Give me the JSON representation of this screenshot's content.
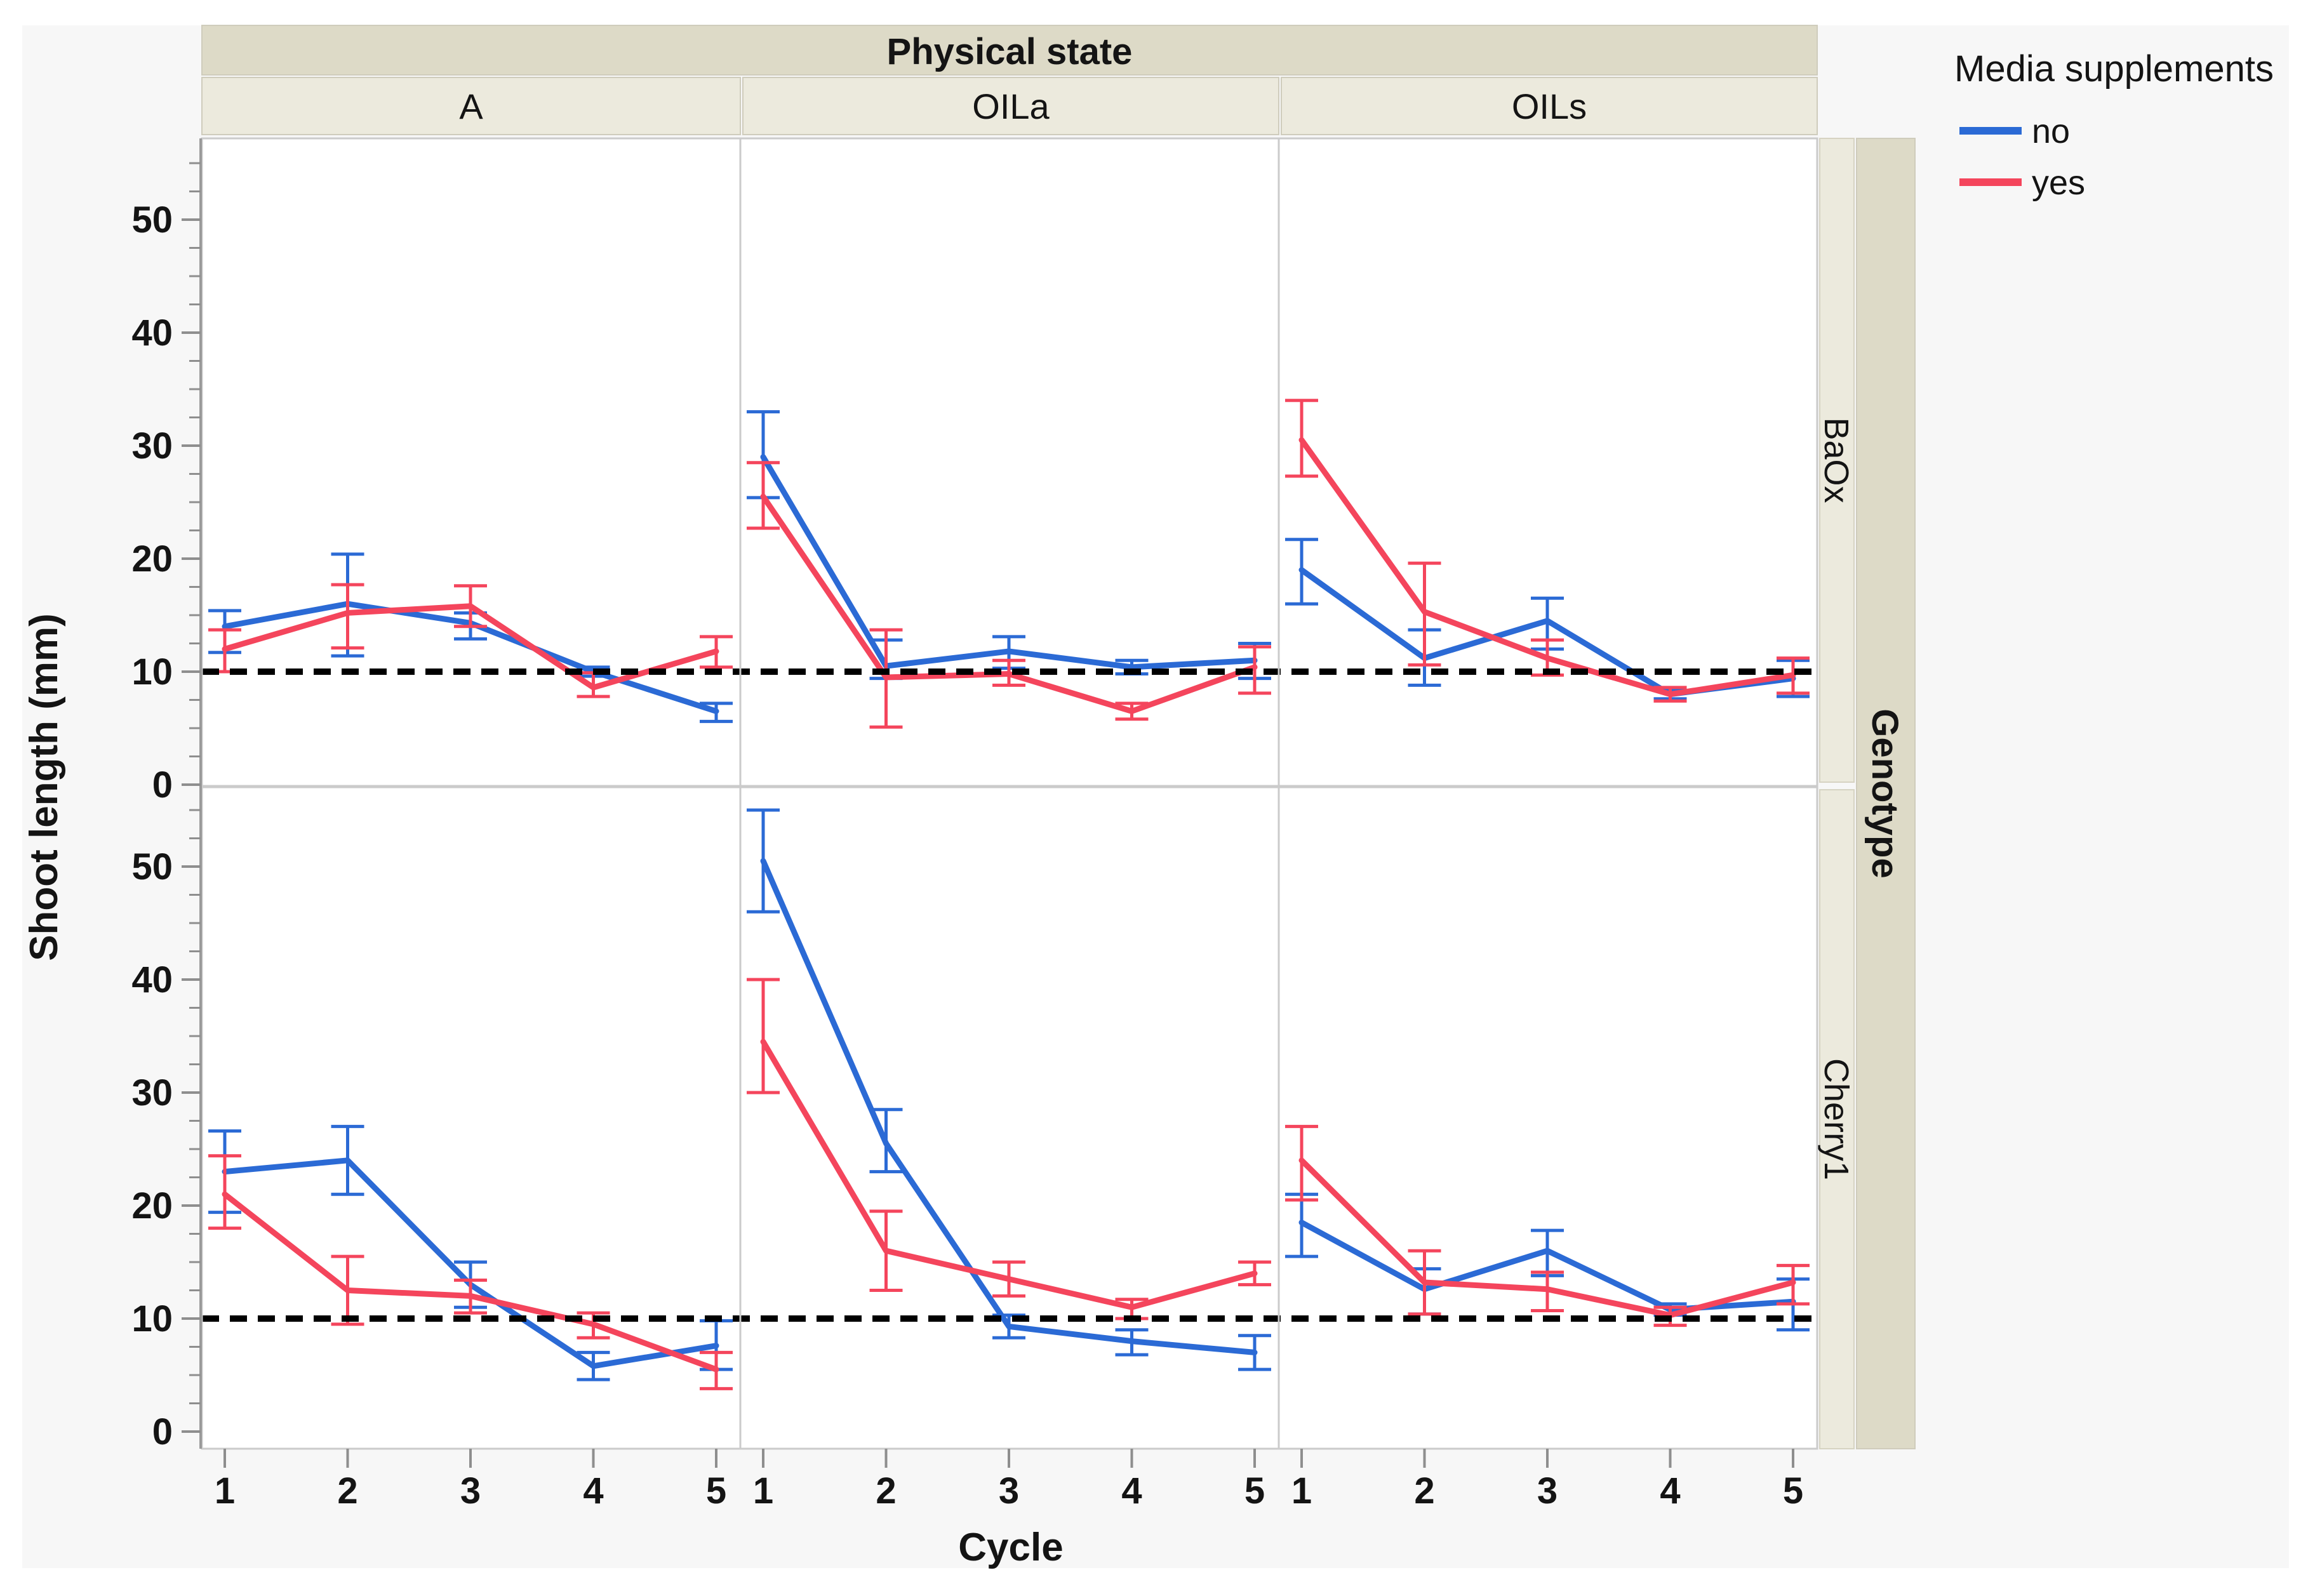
{
  "figure": {
    "col_strip_title": "Physical state",
    "row_strip_title": "Genotype",
    "columns": [
      "A",
      "OILa",
      "OILs"
    ],
    "rows": [
      "BaOx",
      "Cherry1"
    ],
    "x_axis_title": "Cycle",
    "y_axis_title": "Shoot length (mm)",
    "legend": {
      "title": "Media supplements",
      "items": [
        {
          "label": "no",
          "color": "#2B6AD5"
        },
        {
          "label": "yes",
          "color": "#F4455C"
        }
      ]
    }
  },
  "chart_data": {
    "type": "line",
    "title": "",
    "xlabel": "Cycle",
    "ylabel": "Shoot length (mm)",
    "x": [
      1,
      2,
      3,
      4,
      5
    ],
    "y_ticks": [
      0,
      10,
      20,
      30,
      40,
      50
    ],
    "y_minor_step": 2.5,
    "ylim": [
      0,
      57
    ],
    "reference_line_y": 10,
    "legend_position": "top-right",
    "grid": false,
    "facet_columns": [
      "A",
      "OILa",
      "OILs"
    ],
    "facet_rows": [
      "BaOx",
      "Cherry1"
    ],
    "series_colors": {
      "no": "#2B6AD5",
      "yes": "#F4455C"
    },
    "facets": [
      {
        "row": "BaOx",
        "col": "A",
        "series": [
          {
            "name": "no",
            "means": [
              14,
              16,
              14.3,
              10,
              6.5
            ],
            "lower": [
              11.7,
              11.4,
              12.9,
              9.6,
              5.6
            ],
            "upper": [
              15.4,
              20.4,
              15.2,
              10.4,
              7.2
            ]
          },
          {
            "name": "yes",
            "means": [
              12,
              15.2,
              15.8,
              8.6,
              11.8
            ],
            "lower": [
              10,
              12.1,
              14,
              7.8,
              10.4
            ],
            "upper": [
              13.7,
              17.7,
              17.6,
              9.9,
              13.1
            ]
          }
        ]
      },
      {
        "row": "BaOx",
        "col": "OILa",
        "series": [
          {
            "name": "no",
            "means": [
              29,
              10.5,
              11.8,
              10.4,
              11
            ],
            "lower": [
              25.4,
              9.4,
              10.3,
              9.8,
              9.4
            ],
            "upper": [
              33,
              12.8,
              13.1,
              11,
              12.5
            ]
          },
          {
            "name": "yes",
            "means": [
              25.5,
              9.5,
              9.8,
              6.5,
              10.4
            ],
            "lower": [
              22.7,
              5.1,
              8.8,
              5.8,
              8.1
            ],
            "upper": [
              28.5,
              13.7,
              11,
              7.2,
              12.2
            ]
          }
        ]
      },
      {
        "row": "BaOx",
        "col": "OILs",
        "series": [
          {
            "name": "no",
            "means": [
              19,
              11.2,
              14.5,
              8,
              9.4
            ],
            "lower": [
              16,
              8.8,
              12,
              7.6,
              7.8
            ],
            "upper": [
              21.7,
              13.7,
              16.5,
              8.4,
              11
            ]
          },
          {
            "name": "yes",
            "means": [
              30.5,
              15.3,
              11.2,
              8,
              9.7
            ],
            "lower": [
              27.3,
              10.6,
              9.7,
              7.4,
              8.1
            ],
            "upper": [
              34,
              19.6,
              12.8,
              8.6,
              11.2
            ]
          }
        ]
      },
      {
        "row": "Cherry1",
        "col": "A",
        "series": [
          {
            "name": "no",
            "means": [
              23,
              24,
              13,
              5.8,
              7.6
            ],
            "lower": [
              19.4,
              21,
              11,
              4.6,
              5.5
            ],
            "upper": [
              26.6,
              27,
              15,
              7,
              9.8
            ]
          },
          {
            "name": "yes",
            "means": [
              21,
              12.5,
              12,
              9.5,
              5.5
            ],
            "lower": [
              18,
              9.5,
              10.5,
              8.3,
              3.8
            ],
            "upper": [
              24.4,
              15.5,
              13.4,
              10.5,
              7
            ]
          }
        ]
      },
      {
        "row": "Cherry1",
        "col": "OILa",
        "series": [
          {
            "name": "no",
            "means": [
              50.5,
              25.5,
              9.3,
              8,
              7
            ],
            "lower": [
              46,
              23,
              8.3,
              6.8,
              5.5
            ],
            "upper": [
              55,
              28.5,
              10.3,
              9,
              8.5
            ]
          },
          {
            "name": "yes",
            "means": [
              34.5,
              16,
              13.5,
              11,
              14
            ],
            "lower": [
              30,
              12.5,
              12,
              10,
              13
            ],
            "upper": [
              40,
              19.5,
              15,
              11.7,
              15
            ]
          }
        ]
      },
      {
        "row": "Cherry1",
        "col": "OILs",
        "series": [
          {
            "name": "no",
            "means": [
              18.5,
              12.6,
              16,
              10.8,
              11.5
            ],
            "lower": [
              15.5,
              10.4,
              13.8,
              10.3,
              9
            ],
            "upper": [
              21,
              14.4,
              17.8,
              11.3,
              13.5
            ]
          },
          {
            "name": "yes",
            "means": [
              24,
              13.2,
              12.6,
              10.3,
              13.2
            ],
            "lower": [
              20.5,
              10.4,
              10.7,
              9.4,
              11.3
            ],
            "upper": [
              27,
              16,
              14.1,
              11,
              14.7
            ]
          }
        ]
      }
    ]
  },
  "colors": {
    "canvas_bg": "#F7F7F7",
    "panel_bg": "#FFFFFF",
    "panel_border": "#CBCBCB",
    "strip_dark": "#DDDAC7",
    "strip_light": "#ECEADD",
    "axis": "#9A9A9A",
    "tick": "#8E8E8E",
    "text": "#141414",
    "reference_line": "#000000"
  }
}
